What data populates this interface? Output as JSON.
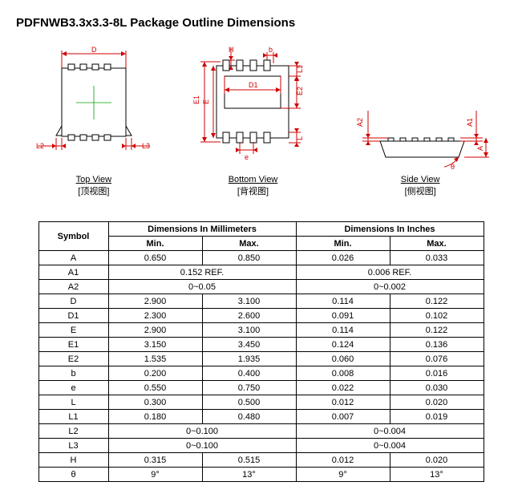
{
  "title": "PDFNWB3.3x3.3-8L Package Outline Dimensions",
  "views": {
    "top": {
      "caption_en": "Top View",
      "caption_cn": "[顶视图]"
    },
    "bottom": {
      "caption_en": "Bottom View",
      "caption_cn": "[背视图]"
    },
    "side": {
      "caption_en": "Side View",
      "caption_cn": "[侧视图]"
    }
  },
  "dim_labels": {
    "D": "D",
    "L2": "L2",
    "L3": "L3",
    "H": "H",
    "b": "b",
    "E1": "E1",
    "E": "E",
    "D1": "D1",
    "L1": "L1",
    "E2": "E2",
    "L": "L",
    "e": "e",
    "A2": "A2",
    "A1": "A1",
    "A": "A",
    "theta": "θ"
  },
  "table": {
    "headers": {
      "symbol": "Symbol",
      "mm": "Dimensions In Millimeters",
      "in": "Dimensions In Inches",
      "min": "Min.",
      "max": "Max."
    },
    "rows": [
      {
        "sym": "A",
        "mm_min": "0.650",
        "mm_max": "0.850",
        "in_min": "0.026",
        "in_max": "0.033"
      },
      {
        "sym": "A1",
        "mm_span": "0.152 REF.",
        "in_span": "0.006 REF."
      },
      {
        "sym": "A2",
        "mm_span": "0~0.05",
        "in_span": "0~0.002"
      },
      {
        "sym": "D",
        "mm_min": "2.900",
        "mm_max": "3.100",
        "in_min": "0.114",
        "in_max": "0.122"
      },
      {
        "sym": "D1",
        "mm_min": "2.300",
        "mm_max": "2.600",
        "in_min": "0.091",
        "in_max": "0.102"
      },
      {
        "sym": "E",
        "mm_min": "2.900",
        "mm_max": "3.100",
        "in_min": "0.114",
        "in_max": "0.122"
      },
      {
        "sym": "E1",
        "mm_min": "3.150",
        "mm_max": "3.450",
        "in_min": "0.124",
        "in_max": "0.136"
      },
      {
        "sym": "E2",
        "mm_min": "1.535",
        "mm_max": "1.935",
        "in_min": "0.060",
        "in_max": "0.076"
      },
      {
        "sym": "b",
        "mm_min": "0.200",
        "mm_max": "0.400",
        "in_min": "0.008",
        "in_max": "0.016"
      },
      {
        "sym": "e",
        "mm_min": "0.550",
        "mm_max": "0.750",
        "in_min": "0.022",
        "in_max": "0.030"
      },
      {
        "sym": "L",
        "mm_min": "0.300",
        "mm_max": "0.500",
        "in_min": "0.012",
        "in_max": "0.020"
      },
      {
        "sym": "L1",
        "mm_min": "0.180",
        "mm_max": "0.480",
        "in_min": "0.007",
        "in_max": "0.019"
      },
      {
        "sym": "L2",
        "mm_span": "0~0.100",
        "in_span": "0~0.004"
      },
      {
        "sym": "L3",
        "mm_span": "0~0.100",
        "in_span": "0~0.004"
      },
      {
        "sym": "H",
        "mm_min": "0.315",
        "mm_max": "0.515",
        "in_min": "0.012",
        "in_max": "0.020"
      },
      {
        "sym": "θ",
        "mm_min": "9°",
        "mm_max": "13°",
        "in_min": "9°",
        "in_max": "13°"
      }
    ]
  },
  "colors": {
    "dim": "#d00000",
    "outline": "#000000",
    "center": "#00a000",
    "bg": "#ffffff"
  }
}
